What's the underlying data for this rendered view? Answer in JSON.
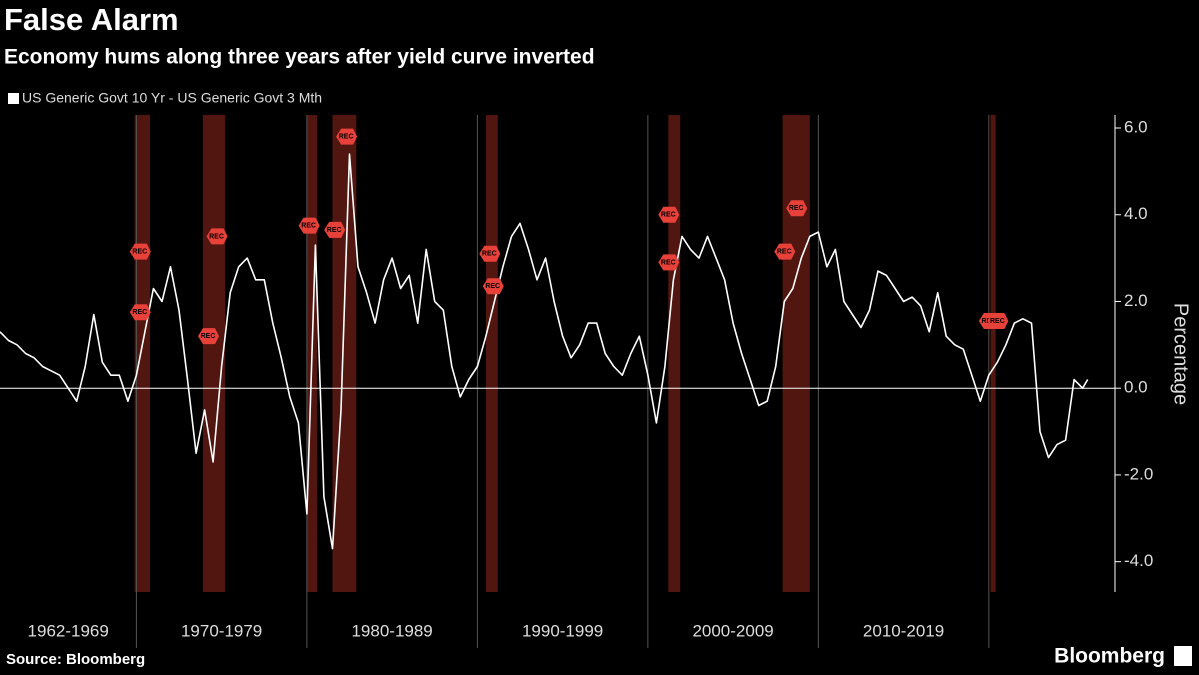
{
  "chart_data": {
    "type": "line",
    "title": "False Alarm",
    "subtitle": "Economy hums along three years after yield curve inverted",
    "y_axis_label": "Percentage",
    "source": "Source: Bloomberg",
    "brand": "Bloomberg",
    "series": [
      {
        "name": "US Generic Govt 10 Yr - US Generic Govt 3 Mth",
        "color": "#ffffff",
        "x": [
          1962,
          1962.5,
          1963,
          1963.5,
          1964,
          1964.5,
          1965,
          1965.5,
          1966,
          1966.5,
          1967,
          1967.5,
          1968,
          1968.5,
          1969,
          1969.5,
          1970,
          1970.5,
          1971,
          1971.5,
          1972,
          1972.5,
          1973,
          1973.5,
          1974,
          1974.5,
          1975,
          1975.5,
          1976,
          1976.5,
          1977,
          1977.5,
          1978,
          1978.5,
          1979,
          1979.5,
          1980,
          1980.5,
          1981,
          1981.5,
          1982,
          1982.5,
          1983,
          1983.5,
          1984,
          1984.5,
          1985,
          1985.5,
          1986,
          1986.5,
          1987,
          1987.5,
          1988,
          1988.5,
          1989,
          1989.5,
          1990,
          1990.5,
          1991,
          1991.5,
          1992,
          1992.5,
          1993,
          1993.5,
          1994,
          1994.5,
          1995,
          1995.5,
          1996,
          1996.5,
          1997,
          1997.5,
          1998,
          1998.5,
          1999,
          1999.5,
          2000,
          2000.5,
          2001,
          2001.5,
          2002,
          2002.5,
          2003,
          2003.5,
          2004,
          2004.5,
          2005,
          2005.5,
          2006,
          2006.5,
          2007,
          2007.5,
          2008,
          2008.5,
          2009,
          2009.5,
          2010,
          2010.5,
          2011,
          2011.5,
          2012,
          2012.5,
          2013,
          2013.5,
          2014,
          2014.5,
          2015,
          2015.5,
          2016,
          2016.5,
          2017,
          2017.5,
          2018,
          2018.5,
          2019,
          2019.5,
          2020,
          2020.5,
          2021,
          2021.5,
          2022,
          2022.5,
          2023,
          2023.5,
          2024,
          2024.5,
          2025,
          2025.5,
          2025.8
        ],
        "values": [
          1.3,
          1.1,
          1.0,
          0.8,
          0.7,
          0.5,
          0.4,
          0.3,
          0.0,
          -0.3,
          0.5,
          1.7,
          0.6,
          0.3,
          0.3,
          -0.3,
          0.3,
          1.3,
          2.3,
          2.0,
          2.8,
          1.8,
          0.2,
          -1.5,
          -0.5,
          -1.7,
          0.5,
          2.2,
          2.8,
          3.0,
          2.5,
          2.5,
          1.5,
          0.7,
          -0.2,
          -0.8,
          -2.9,
          3.3,
          -2.5,
          -3.7,
          -0.5,
          5.4,
          2.8,
          2.2,
          1.5,
          2.5,
          3.0,
          2.3,
          2.6,
          1.5,
          3.2,
          2.0,
          1.8,
          0.5,
          -0.2,
          0.2,
          0.5,
          1.2,
          2.0,
          2.8,
          3.5,
          3.8,
          3.2,
          2.5,
          3.0,
          2.0,
          1.2,
          0.7,
          1.0,
          1.5,
          1.5,
          0.8,
          0.5,
          0.3,
          0.8,
          1.2,
          0.3,
          -0.8,
          0.5,
          2.5,
          3.5,
          3.2,
          3.0,
          3.5,
          3.0,
          2.5,
          1.5,
          0.8,
          0.2,
          -0.4,
          -0.3,
          0.5,
          2.0,
          2.3,
          3.0,
          3.5,
          3.6,
          2.8,
          3.2,
          2.0,
          1.7,
          1.4,
          1.8,
          2.7,
          2.6,
          2.3,
          2.0,
          2.1,
          1.9,
          1.3,
          2.2,
          1.2,
          1.0,
          0.9,
          0.3,
          -0.3,
          0.3,
          0.6,
          1.0,
          1.5,
          1.6,
          1.5,
          -1.0,
          -1.6,
          -1.3,
          -1.2,
          0.2,
          0.0,
          0.2
        ]
      }
    ],
    "xlim": [
      1962,
      2027.4
    ],
    "ylim": [
      -4.7,
      6.3
    ],
    "yticks": [
      {
        "value": 6,
        "label": "6.0"
      },
      {
        "value": 4,
        "label": "4.0"
      },
      {
        "value": 2,
        "label": "2.0"
      },
      {
        "value": 0,
        "label": "0.0"
      },
      {
        "value": -2,
        "label": "-2.0"
      },
      {
        "value": -4,
        "label": "-4.0"
      }
    ],
    "periods": [
      {
        "label": "1962-1969",
        "start": 1962,
        "end": 1970
      },
      {
        "label": "1970-1979",
        "start": 1970,
        "end": 1980
      },
      {
        "label": "1980-1989",
        "start": 1980,
        "end": 1990
      },
      {
        "label": "1990-1999",
        "start": 1990,
        "end": 2000
      },
      {
        "label": "2000-2009",
        "start": 2000,
        "end": 2010
      },
      {
        "label": "2010-2019",
        "start": 2010,
        "end": 2020
      }
    ],
    "recessions": [
      [
        1969.9,
        1970.8
      ],
      [
        1973.9,
        1975.2
      ],
      [
        1980.0,
        1980.6
      ],
      [
        1981.5,
        1982.9
      ],
      [
        1990.5,
        1991.2
      ],
      [
        2001.2,
        2001.9
      ],
      [
        2007.9,
        2009.5
      ],
      [
        2020.1,
        2020.4
      ]
    ],
    "recession_color": "#5a1812",
    "rec_markers": [
      {
        "x": 1970.2,
        "y": 3.15,
        "label": "REC"
      },
      {
        "x": 1970.2,
        "y": 1.75,
        "label": "REC"
      },
      {
        "x": 1974.7,
        "y": 3.5,
        "label": "REC"
      },
      {
        "x": 1974.2,
        "y": 1.2,
        "label": "REC"
      },
      {
        "x": 1980.1,
        "y": 3.75,
        "label": "REC"
      },
      {
        "x": 1981.6,
        "y": 3.65,
        "label": "REC"
      },
      {
        "x": 1982.3,
        "y": 5.8,
        "label": "REC"
      },
      {
        "x": 1990.7,
        "y": 3.1,
        "label": "REC"
      },
      {
        "x": 1990.9,
        "y": 2.35,
        "label": "REC"
      },
      {
        "x": 2001.2,
        "y": 4.0,
        "label": "REC"
      },
      {
        "x": 2001.2,
        "y": 2.9,
        "label": "REC"
      },
      {
        "x": 2008.0,
        "y": 3.15,
        "label": "REC"
      },
      {
        "x": 2008.7,
        "y": 4.15,
        "label": "REC"
      },
      {
        "x": 2020.0,
        "y": 1.55,
        "label": "REC"
      },
      {
        "x": 2020.5,
        "y": 1.55,
        "label": "REC"
      }
    ],
    "rec_marker_color": "#e8413a",
    "zero_line": true
  }
}
